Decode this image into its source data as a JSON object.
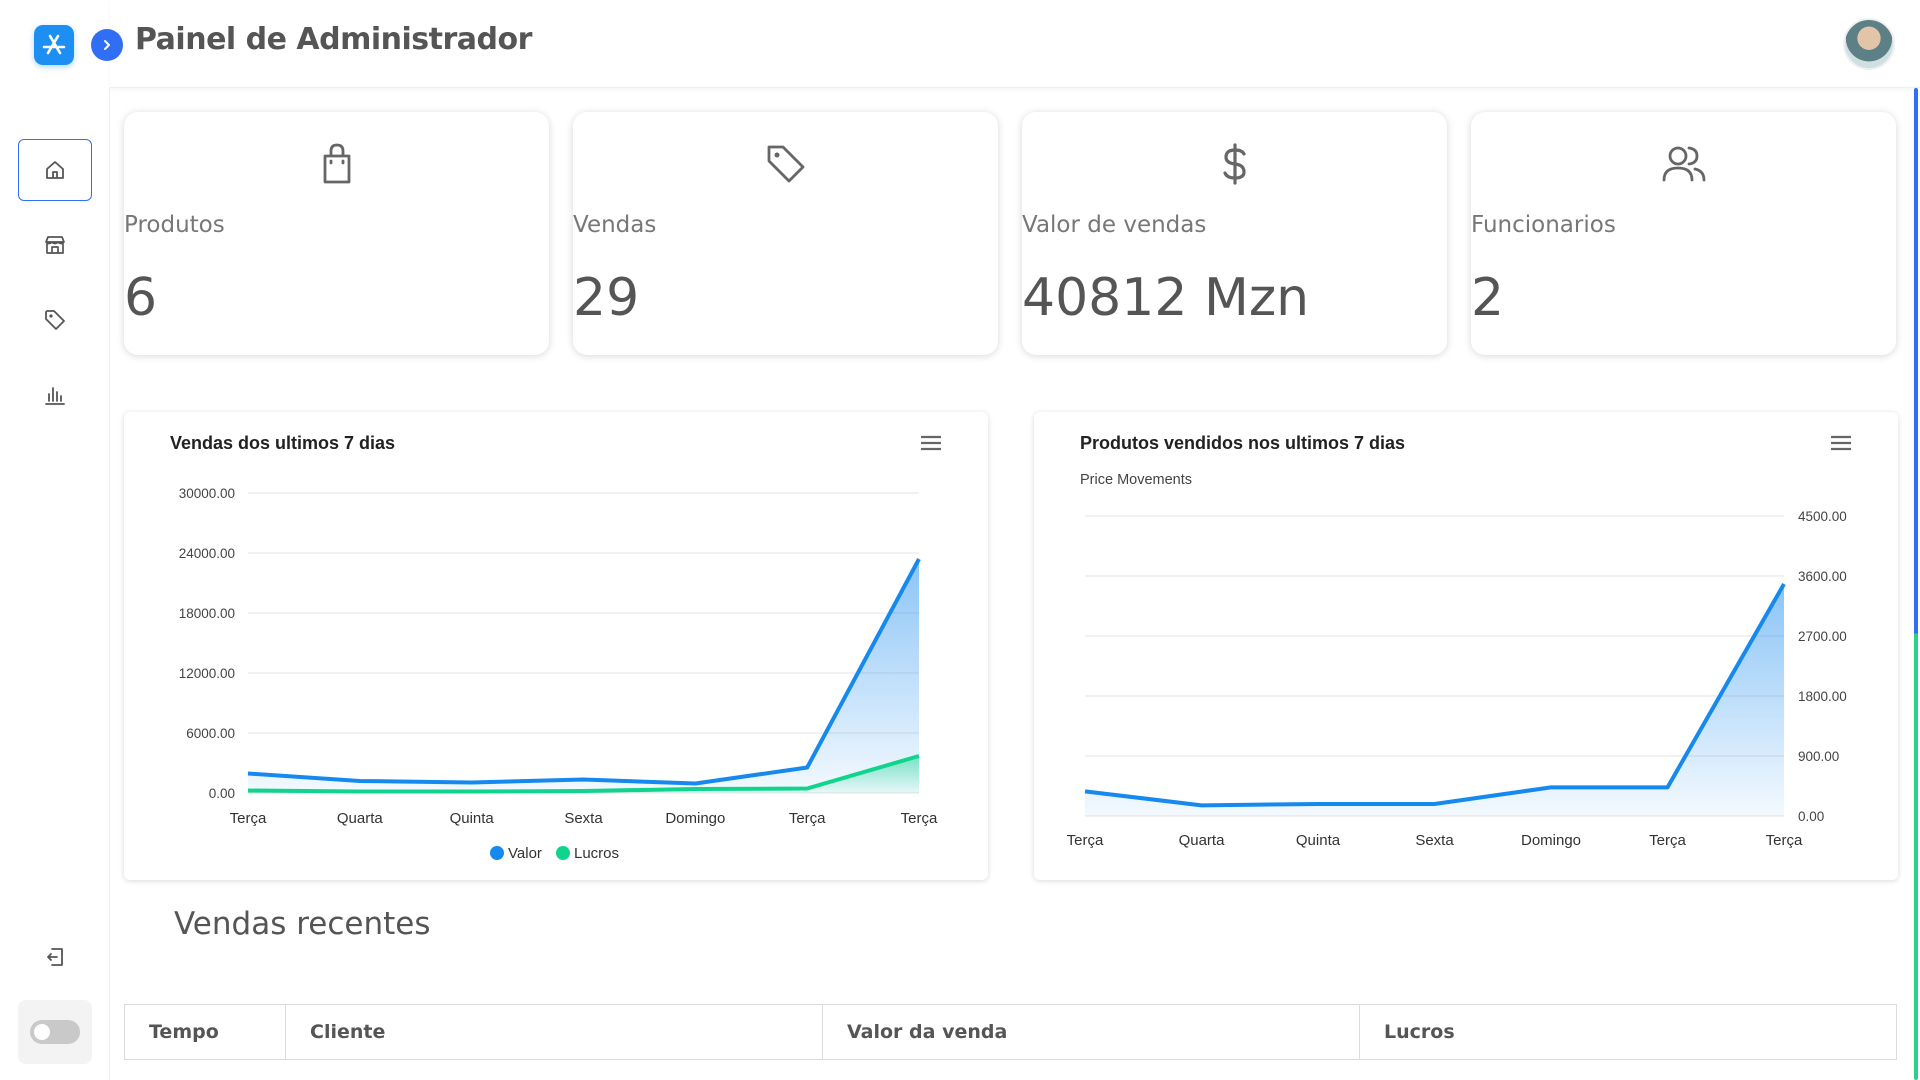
{
  "header": {
    "title": "Painel de Administrador"
  },
  "stats": [
    {
      "label": "Produtos",
      "value": "6",
      "icon": "shopping-bag-icon"
    },
    {
      "label": "Vendas",
      "value": "29",
      "icon": "tag-icon"
    },
    {
      "label": "Valor de vendas",
      "value": "40812 Mzn",
      "icon": "dollar-icon"
    },
    {
      "label": "Funcionarios",
      "value": "2",
      "icon": "users-icon"
    }
  ],
  "sidebar": {
    "items": [
      {
        "icon": "home-icon",
        "active": true
      },
      {
        "icon": "store-icon",
        "active": false
      },
      {
        "icon": "tag-icon",
        "active": false
      },
      {
        "icon": "bar-chart-icon",
        "active": false
      }
    ],
    "bottom": [
      {
        "icon": "logout-icon"
      },
      {
        "icon": "theme-toggle"
      }
    ]
  },
  "colors": {
    "accent": "#2f6ef5",
    "series_valor": "#1689ee",
    "series_lucros": "#10d48c"
  },
  "chart_data": [
    {
      "type": "area",
      "title": "Vendas dos ultimos 7 dias",
      "categories": [
        "Terça",
        "Quarta",
        "Quinta",
        "Sexta",
        "Domingo",
        "Terça",
        "Terça"
      ],
      "series": [
        {
          "name": "Valor",
          "values": [
            1950,
            1200,
            1050,
            1350,
            950,
            2550,
            23400
          ]
        },
        {
          "name": "Lucros",
          "values": [
            250,
            150,
            150,
            200,
            400,
            450,
            3700
          ]
        }
      ],
      "ylim": [
        0,
        30000
      ],
      "yticks": [
        "0.00",
        "6000.00",
        "12000.00",
        "18000.00",
        "24000.00",
        "30000.00"
      ],
      "legend": "bottom"
    },
    {
      "type": "area",
      "title": "Produtos vendidos nos ultimos 7 dias",
      "subtitle": "Price Movements",
      "categories": [
        "Terça",
        "Quarta",
        "Quinta",
        "Sexta",
        "Domingo",
        "Terça",
        "Terça"
      ],
      "series": [
        {
          "values": [
            370,
            160,
            180,
            180,
            430,
            430,
            3480
          ]
        }
      ],
      "ylim": [
        0,
        4500
      ],
      "yticks": [
        "0.00",
        "900.00",
        "1800.00",
        "2700.00",
        "3600.00",
        "4500.00"
      ],
      "yaxis_side": "right"
    }
  ],
  "recent": {
    "title": "Vendas recentes",
    "columns": [
      "Tempo",
      "Cliente",
      "Valor da venda",
      "Lucros"
    ]
  }
}
